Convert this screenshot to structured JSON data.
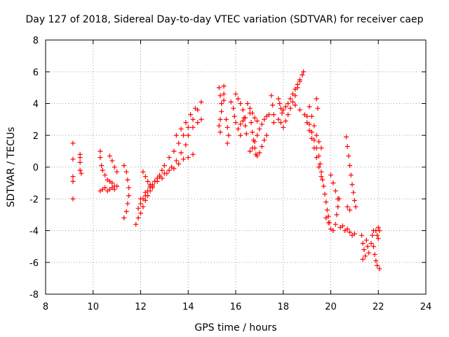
{
  "chart_data": {
    "type": "scatter",
    "title": "Day 127 of 2018, Sidereal Day-to-day VTEC variation (SDTVAR) for receiver caep",
    "xlabel": "GPS time / hours",
    "ylabel": "SDTVAR / TECUs",
    "xlim": [
      8,
      24
    ],
    "ylim": [
      -8,
      8
    ],
    "xticks": [
      "8",
      "10",
      "12",
      "14",
      "16",
      "18",
      "20",
      "22",
      "24"
    ],
    "yticks": [
      "-8",
      "-6",
      "-4",
      "-2",
      "0",
      "2",
      "4",
      "6",
      "8"
    ],
    "grid": true,
    "marker": "plus",
    "color": "#ff0000",
    "series": [
      {
        "name": "SDTVAR",
        "points": [
          [
            9.15,
            1.5
          ],
          [
            9.15,
            0.5
          ],
          [
            9.15,
            -0.6
          ],
          [
            9.15,
            -0.9
          ],
          [
            9.15,
            -2.0
          ],
          [
            9.45,
            0.8
          ],
          [
            9.45,
            0.3
          ],
          [
            9.45,
            -0.2
          ],
          [
            9.5,
            -0.4
          ],
          [
            9.45,
            0.6
          ],
          [
            10.3,
            1.0
          ],
          [
            10.3,
            0.6
          ],
          [
            10.35,
            0.1
          ],
          [
            10.4,
            -0.2
          ],
          [
            10.5,
            -0.5
          ],
          [
            10.6,
            -0.8
          ],
          [
            10.7,
            -0.9
          ],
          [
            10.8,
            -1.0
          ],
          [
            10.9,
            -1.2
          ],
          [
            10.3,
            -1.5
          ],
          [
            10.4,
            -1.4
          ],
          [
            10.5,
            -1.3
          ],
          [
            10.6,
            -1.5
          ],
          [
            10.7,
            -1.4
          ],
          [
            10.8,
            -1.3
          ],
          [
            10.9,
            -1.4
          ],
          [
            11.0,
            -1.2
          ],
          [
            10.7,
            0.7
          ],
          [
            10.8,
            0.4
          ],
          [
            10.9,
            0.0
          ],
          [
            11.0,
            -0.3
          ],
          [
            11.3,
            0.1
          ],
          [
            11.4,
            -0.3
          ],
          [
            11.45,
            -0.8
          ],
          [
            11.5,
            -1.3
          ],
          [
            11.5,
            -1.8
          ],
          [
            11.45,
            -2.3
          ],
          [
            11.4,
            -2.8
          ],
          [
            11.3,
            -3.2
          ],
          [
            11.8,
            -3.6
          ],
          [
            11.9,
            -3.2
          ],
          [
            12.0,
            -2.9
          ],
          [
            12.1,
            -2.5
          ],
          [
            12.2,
            -2.1
          ],
          [
            12.3,
            -1.8
          ],
          [
            12.4,
            -1.5
          ],
          [
            12.5,
            -1.2
          ],
          [
            12.6,
            -0.9
          ],
          [
            12.7,
            -0.7
          ],
          [
            12.8,
            -0.5
          ],
          [
            12.9,
            -0.2
          ],
          [
            13.0,
            0.1
          ],
          [
            13.2,
            0.6
          ],
          [
            13.4,
            1.0
          ],
          [
            13.6,
            1.5
          ],
          [
            13.8,
            2.0
          ],
          [
            14.0,
            2.5
          ],
          [
            14.2,
            3.0
          ],
          [
            14.4,
            3.6
          ],
          [
            14.55,
            4.1
          ],
          [
            11.9,
            -2.6
          ],
          [
            12.0,
            -2.3
          ],
          [
            12.1,
            -2.0
          ],
          [
            12.2,
            -1.8
          ],
          [
            12.3,
            -1.5
          ],
          [
            12.4,
            -1.3
          ],
          [
            12.5,
            -1.1
          ],
          [
            12.7,
            -0.9
          ],
          [
            12.9,
            -0.7
          ],
          [
            13.1,
            -0.4
          ],
          [
            13.3,
            0.0
          ],
          [
            13.5,
            0.4
          ],
          [
            13.7,
            0.9
          ],
          [
            13.9,
            1.4
          ],
          [
            14.0,
            2.0
          ],
          [
            14.2,
            2.5
          ],
          [
            14.4,
            2.8
          ],
          [
            14.55,
            3.0
          ],
          [
            12.0,
            -2.0
          ],
          [
            12.2,
            -1.6
          ],
          [
            12.4,
            -1.2
          ],
          [
            12.6,
            -0.9
          ],
          [
            12.8,
            -0.6
          ],
          [
            13.0,
            -0.4
          ],
          [
            13.2,
            -0.2
          ],
          [
            13.4,
            -0.1
          ],
          [
            13.6,
            0.2
          ],
          [
            13.8,
            0.5
          ],
          [
            14.0,
            0.6
          ],
          [
            14.2,
            0.8
          ],
          [
            12.1,
            -0.3
          ],
          [
            12.2,
            -0.6
          ],
          [
            12.3,
            -0.9
          ],
          [
            12.4,
            -1.1
          ],
          [
            12.5,
            -1.3
          ],
          [
            13.5,
            2.0
          ],
          [
            13.7,
            2.4
          ],
          [
            13.9,
            2.8
          ],
          [
            14.1,
            3.3
          ],
          [
            14.3,
            3.7
          ],
          [
            15.3,
            5.0
          ],
          [
            15.35,
            4.5
          ],
          [
            15.4,
            4.0
          ],
          [
            15.4,
            3.5
          ],
          [
            15.35,
            3.0
          ],
          [
            15.3,
            2.6
          ],
          [
            15.35,
            2.2
          ],
          [
            15.5,
            5.1
          ],
          [
            15.5,
            4.6
          ],
          [
            15.5,
            4.2
          ],
          [
            15.6,
            3.0
          ],
          [
            15.65,
            2.5
          ],
          [
            15.7,
            2.0
          ],
          [
            15.65,
            1.5
          ],
          [
            15.8,
            4.1
          ],
          [
            15.9,
            3.7
          ],
          [
            15.95,
            3.2
          ],
          [
            16.0,
            2.8
          ],
          [
            16.1,
            2.4
          ],
          [
            16.2,
            2.0
          ],
          [
            16.0,
            4.6
          ],
          [
            16.1,
            4.3
          ],
          [
            16.2,
            4.0
          ],
          [
            16.3,
            3.6
          ],
          [
            16.35,
            3.1
          ],
          [
            16.4,
            2.6
          ],
          [
            16.45,
            2.1
          ],
          [
            16.2,
            2.7
          ],
          [
            16.3,
            2.9
          ],
          [
            16.4,
            3.1
          ],
          [
            16.5,
            4.0
          ],
          [
            16.6,
            3.4
          ],
          [
            16.65,
            2.8
          ],
          [
            16.7,
            2.2
          ],
          [
            16.75,
            1.7
          ],
          [
            16.8,
            1.2
          ],
          [
            16.85,
            0.8
          ],
          [
            16.9,
            0.7
          ],
          [
            17.0,
            0.9
          ],
          [
            17.1,
            1.3
          ],
          [
            17.2,
            1.7
          ],
          [
            17.3,
            2.0
          ],
          [
            16.6,
            1.0
          ],
          [
            16.7,
            1.2
          ],
          [
            16.8,
            1.6
          ],
          [
            16.9,
            2.0
          ],
          [
            17.0,
            2.4
          ],
          [
            17.1,
            2.7
          ],
          [
            17.2,
            3.0
          ],
          [
            17.3,
            3.2
          ],
          [
            17.4,
            3.3
          ],
          [
            16.6,
            3.7
          ],
          [
            16.7,
            3.4
          ],
          [
            16.8,
            3.1
          ],
          [
            16.9,
            2.9
          ],
          [
            17.5,
            4.5
          ],
          [
            17.55,
            3.9
          ],
          [
            17.6,
            3.3
          ],
          [
            17.6,
            2.8
          ],
          [
            17.8,
            4.3
          ],
          [
            17.85,
            4.0
          ],
          [
            17.9,
            3.7
          ],
          [
            17.95,
            3.4
          ],
          [
            17.8,
            3.0
          ],
          [
            17.9,
            2.8
          ],
          [
            18.0,
            2.5
          ],
          [
            18.1,
            2.9
          ],
          [
            18.2,
            3.3
          ],
          [
            18.3,
            3.7
          ],
          [
            18.4,
            4.1
          ],
          [
            18.5,
            4.5
          ],
          [
            18.6,
            5.0
          ],
          [
            18.7,
            5.4
          ],
          [
            18.8,
            5.8
          ],
          [
            18.85,
            6.0
          ],
          [
            18.0,
            3.6
          ],
          [
            18.1,
            3.8
          ],
          [
            18.2,
            4.0
          ],
          [
            18.3,
            4.3
          ],
          [
            18.4,
            4.6
          ],
          [
            18.5,
            4.9
          ],
          [
            18.6,
            5.2
          ],
          [
            18.7,
            5.5
          ],
          [
            18.5,
            3.9
          ],
          [
            18.7,
            3.6
          ],
          [
            18.9,
            3.3
          ],
          [
            19.0,
            2.8
          ],
          [
            19.1,
            2.3
          ],
          [
            19.2,
            1.8
          ],
          [
            19.3,
            1.2
          ],
          [
            19.4,
            0.6
          ],
          [
            19.5,
            0.0
          ],
          [
            19.6,
            -0.6
          ],
          [
            19.7,
            -1.2
          ],
          [
            19.75,
            -1.7
          ],
          [
            19.8,
            -2.2
          ],
          [
            19.85,
            -2.7
          ],
          [
            19.9,
            -3.1
          ],
          [
            19.95,
            -3.5
          ],
          [
            19.0,
            3.2
          ],
          [
            19.1,
            2.7
          ],
          [
            19.2,
            2.2
          ],
          [
            19.3,
            1.7
          ],
          [
            19.4,
            1.2
          ],
          [
            19.5,
            0.7
          ],
          [
            19.55,
            0.2
          ],
          [
            19.6,
            -0.3
          ],
          [
            19.65,
            -0.8
          ],
          [
            19.1,
            3.8
          ],
          [
            19.2,
            3.2
          ],
          [
            19.3,
            2.6
          ],
          [
            19.4,
            2.0
          ],
          [
            19.5,
            1.6
          ],
          [
            19.6,
            1.2
          ],
          [
            19.4,
            4.3
          ],
          [
            19.45,
            3.7
          ],
          [
            19.8,
            -3.2
          ],
          [
            19.9,
            -3.5
          ],
          [
            20.0,
            -3.9
          ],
          [
            20.1,
            -4.0
          ],
          [
            20.2,
            -3.6
          ],
          [
            20.25,
            -3.0
          ],
          [
            20.3,
            -2.5
          ],
          [
            20.35,
            -2.0
          ],
          [
            20.4,
            -3.8
          ],
          [
            20.5,
            -3.7
          ],
          [
            20.6,
            -4.0
          ],
          [
            20.7,
            -3.9
          ],
          [
            20.8,
            -4.1
          ],
          [
            20.9,
            -4.3
          ],
          [
            21.0,
            -4.2
          ],
          [
            20.0,
            -0.5
          ],
          [
            20.1,
            -1.0
          ],
          [
            20.2,
            -1.5
          ],
          [
            20.3,
            -2.0
          ],
          [
            20.65,
            1.9
          ],
          [
            20.7,
            1.3
          ],
          [
            20.75,
            0.7
          ],
          [
            20.8,
            0.1
          ],
          [
            20.85,
            -0.5
          ],
          [
            20.9,
            -1.1
          ],
          [
            20.95,
            -1.6
          ],
          [
            21.0,
            -2.1
          ],
          [
            21.05,
            -2.5
          ],
          [
            20.7,
            -2.5
          ],
          [
            20.8,
            -2.7
          ],
          [
            21.3,
            -4.3
          ],
          [
            21.35,
            -4.8
          ],
          [
            21.4,
            -5.2
          ],
          [
            21.45,
            -5.6
          ],
          [
            21.35,
            -5.8
          ],
          [
            21.5,
            -4.6
          ],
          [
            21.55,
            -5.0
          ],
          [
            21.6,
            -5.4
          ],
          [
            21.7,
            -4.8
          ],
          [
            21.75,
            -4.3
          ],
          [
            21.8,
            -4.0
          ],
          [
            21.9,
            -4.0
          ],
          [
            21.95,
            -4.3
          ],
          [
            22.0,
            -4.5
          ],
          [
            22.05,
            -4.0
          ],
          [
            22.0,
            -3.8
          ],
          [
            21.8,
            -5.0
          ],
          [
            21.85,
            -5.5
          ],
          [
            21.9,
            -5.9
          ],
          [
            21.95,
            -6.2
          ],
          [
            22.05,
            -6.4
          ]
        ]
      }
    ]
  }
}
